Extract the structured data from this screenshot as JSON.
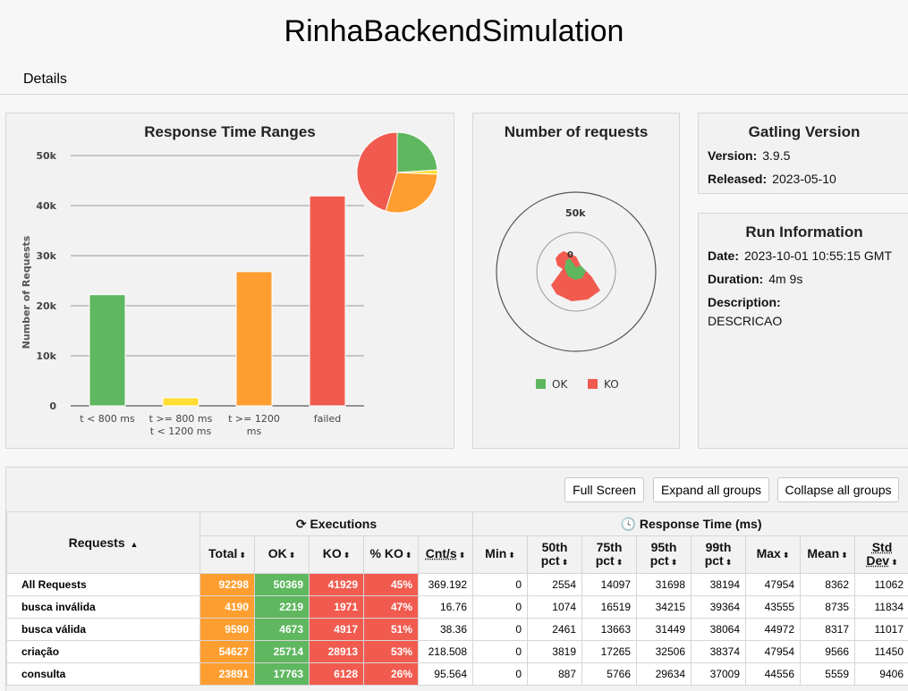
{
  "header": {
    "title": "RinhaBackendSimulation",
    "details": "Details"
  },
  "response_time_ranges": {
    "title": "Response Time Ranges",
    "ylabel": "Number of Requests",
    "yticks": [
      "50k",
      "40k",
      "30k",
      "20k",
      "10k",
      "0"
    ],
    "categories": [
      [
        "t < 800 ms"
      ],
      [
        "t >= 800 ms",
        "t < 1200 ms"
      ],
      [
        "t >= 1200",
        "ms"
      ],
      [
        "failed"
      ]
    ]
  },
  "chart_data": [
    {
      "type": "bar",
      "categories": [
        "t < 800 ms",
        "t >= 800 ms t < 1200 ms",
        "t >= 1200 ms",
        "failed"
      ],
      "values": [
        22200,
        1600,
        26800,
        41929
      ],
      "ylim": [
        0,
        50000
      ],
      "colors": [
        "#5fb75f",
        "#ffdd33",
        "#ff9e30",
        "#f15b4f"
      ]
    },
    {
      "type": "pie",
      "values": [
        22200,
        1600,
        26800,
        41929
      ],
      "colors": [
        "#5fb75f",
        "#ffdd33",
        "#ff9e30",
        "#f15b4f"
      ]
    },
    {
      "type": "area",
      "title": "Number of requests",
      "series": [
        {
          "name": "OK",
          "color": "#5fb75f"
        },
        {
          "name": "KO",
          "color": "#f15b4f"
        }
      ],
      "axis_labels": [
        "50k",
        "0"
      ]
    }
  ],
  "number_of_requests": {
    "title": "Number of requests",
    "ring_label": "50k",
    "zero_label": "0",
    "legend_ok": "OK",
    "legend_ko": "KO"
  },
  "gatling": {
    "title": "Gatling Version",
    "version_label": "Version:",
    "version": "3.9.5",
    "released_label": "Released:",
    "released": "2023-05-10"
  },
  "run": {
    "title": "Run Information",
    "date_label": "Date:",
    "date": "2023-10-01 10:55:15 GMT",
    "duration_label": "Duration:",
    "duration": "4m 9s",
    "description_label": "Description:",
    "description": "DESCRICAO"
  },
  "buttons": {
    "full_screen": "Full Screen",
    "expand": "Expand all groups",
    "collapse": "Collapse all groups"
  },
  "table": {
    "requests_header": "Requests",
    "executions_header": "Executions",
    "response_header": "Response Time (ms)",
    "columns": {
      "total": "Total",
      "ok": "OK",
      "ko": "KO",
      "pct_ko": "% KO",
      "cnt": "Cnt/s",
      "min": "Min",
      "p50a": "50th",
      "p50b": "pct",
      "p75a": "75th",
      "p75b": "pct",
      "p95a": "95th",
      "p95b": "pct",
      "p99a": "99th",
      "p99b": "pct",
      "max": "Max",
      "mean": "Mean",
      "stda": "Std",
      "stdb": "Dev"
    },
    "rows": [
      {
        "name": "All Requests",
        "total": "92298",
        "ok": "50369",
        "ko": "41929",
        "pct": "45%",
        "cnt": "369.192",
        "min": "0",
        "p50": "2554",
        "p75": "14097",
        "p95": "31698",
        "p99": "38194",
        "max": "47954",
        "mean": "8362",
        "std": "11062"
      },
      {
        "name": "busca inválida",
        "total": "4190",
        "ok": "2219",
        "ko": "1971",
        "pct": "47%",
        "cnt": "16.76",
        "min": "0",
        "p50": "1074",
        "p75": "16519",
        "p95": "34215",
        "p99": "39364",
        "max": "43555",
        "mean": "8735",
        "std": "11834"
      },
      {
        "name": "busca válida",
        "total": "9590",
        "ok": "4673",
        "ko": "4917",
        "pct": "51%",
        "cnt": "38.36",
        "min": "0",
        "p50": "2461",
        "p75": "13663",
        "p95": "31449",
        "p99": "38064",
        "max": "44972",
        "mean": "8317",
        "std": "11017"
      },
      {
        "name": "criação",
        "total": "54627",
        "ok": "25714",
        "ko": "28913",
        "pct": "53%",
        "cnt": "218.508",
        "min": "0",
        "p50": "3819",
        "p75": "17265",
        "p95": "32506",
        "p99": "38374",
        "max": "47954",
        "mean": "9566",
        "std": "11450"
      },
      {
        "name": "consulta",
        "total": "23891",
        "ok": "17763",
        "ko": "6128",
        "pct": "26%",
        "cnt": "95.564",
        "min": "0",
        "p50": "887",
        "p75": "5766",
        "p95": "29634",
        "p99": "37009",
        "max": "44556",
        "mean": "5559",
        "std": "9406"
      }
    ]
  }
}
